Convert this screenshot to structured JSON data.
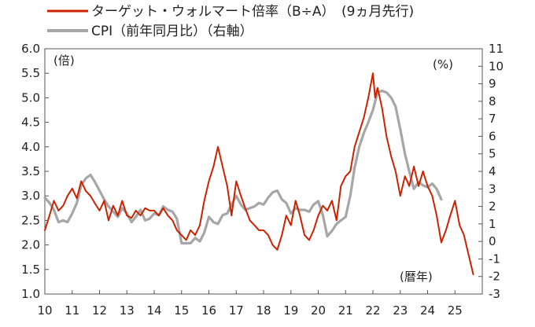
{
  "chart_data": {
    "type": "line",
    "title": "",
    "legend": {
      "placement": "top-left",
      "entries": [
        {
          "label": "ターゲット・ウォルマート倍率（B÷A）　(9ヵ月先行)",
          "color": "#cc2200"
        },
        {
          "label": "CPI（前年同月比）（右軸）",
          "color": "#a6a6a6"
        }
      ]
    },
    "left_axis": {
      "unit": "(倍)",
      "min": 1.0,
      "max": 6.0,
      "ticks": [
        "1.0",
        "1.5",
        "2.0",
        "2.5",
        "3.0",
        "3.5",
        "4.0",
        "4.5",
        "5.0",
        "5.5",
        "6.0"
      ]
    },
    "right_axis": {
      "unit": "(%)",
      "min": -3,
      "max": 11,
      "ticks": [
        "-3",
        "-2",
        "-1",
        "0",
        "1",
        "2",
        "3",
        "4",
        "5",
        "6",
        "7",
        "8",
        "9",
        "10",
        "11"
      ]
    },
    "x_axis": {
      "unit": "(暦年)",
      "min": 10,
      "max": 26,
      "ticks": [
        "10",
        "11",
        "12",
        "13",
        "14",
        "15",
        "16",
        "17",
        "18",
        "19",
        "20",
        "21",
        "22",
        "23",
        "24",
        "25"
      ]
    },
    "grid": false,
    "series": [
      {
        "name": "ターゲット・ウォルマート倍率（B÷A）　(9ヵ月先行)",
        "axis": "left",
        "color": "#cc2200",
        "x": [
          10.0,
          10.17,
          10.33,
          10.5,
          10.67,
          10.83,
          11.0,
          11.17,
          11.33,
          11.5,
          11.67,
          11.83,
          12.0,
          12.17,
          12.33,
          12.5,
          12.67,
          12.83,
          13.0,
          13.17,
          13.33,
          13.5,
          13.67,
          13.83,
          14.0,
          14.17,
          14.33,
          14.5,
          14.67,
          14.83,
          15.0,
          15.17,
          15.33,
          15.5,
          15.67,
          15.83,
          16.0,
          16.17,
          16.33,
          16.5,
          16.67,
          16.83,
          17.0,
          17.17,
          17.33,
          17.5,
          17.67,
          17.83,
          18.0,
          18.17,
          18.33,
          18.5,
          18.67,
          18.83,
          19.0,
          19.17,
          19.33,
          19.5,
          19.67,
          19.83,
          20.0,
          20.17,
          20.33,
          20.5,
          20.67,
          20.83,
          21.0,
          21.17,
          21.33,
          21.5,
          21.67,
          21.83,
          22.0,
          22.08,
          22.17,
          22.25,
          22.33,
          22.5,
          22.67,
          22.83,
          23.0,
          23.17,
          23.33,
          23.5,
          23.67,
          23.83,
          24.0,
          24.17,
          24.33,
          24.5,
          24.67,
          24.83,
          25.0,
          25.17,
          25.33,
          25.5,
          25.67
        ],
        "values": [
          2.3,
          2.6,
          2.9,
          2.7,
          2.8,
          3.0,
          3.15,
          2.95,
          3.3,
          3.1,
          3.0,
          2.85,
          2.7,
          2.9,
          2.5,
          2.8,
          2.6,
          2.9,
          2.6,
          2.55,
          2.7,
          2.6,
          2.75,
          2.7,
          2.7,
          2.6,
          2.75,
          2.6,
          2.5,
          2.3,
          2.2,
          2.1,
          2.3,
          2.2,
          2.4,
          2.9,
          3.3,
          3.6,
          4.0,
          3.6,
          3.2,
          2.6,
          3.3,
          3.0,
          2.75,
          2.5,
          2.4,
          2.3,
          2.3,
          2.2,
          2.0,
          1.9,
          2.2,
          2.6,
          2.4,
          2.9,
          2.6,
          2.2,
          2.1,
          2.3,
          2.6,
          2.8,
          2.7,
          2.9,
          2.5,
          3.2,
          3.4,
          3.5,
          4.0,
          4.3,
          4.6,
          5.0,
          5.5,
          5.0,
          5.2,
          5.0,
          4.8,
          4.2,
          3.8,
          3.5,
          3.0,
          3.4,
          3.2,
          3.6,
          3.2,
          3.5,
          3.2,
          3.0,
          2.6,
          2.05,
          2.3,
          2.6,
          2.9,
          2.4,
          2.2,
          1.8,
          1.4
        ]
      },
      {
        "name": "CPI（前年同月比）（右軸）",
        "axis": "right",
        "color": "#a6a6a6",
        "x": [
          10.0,
          10.17,
          10.33,
          10.5,
          10.67,
          10.83,
          11.0,
          11.17,
          11.33,
          11.5,
          11.67,
          11.83,
          12.0,
          12.17,
          12.33,
          12.5,
          12.67,
          12.83,
          13.0,
          13.17,
          13.33,
          13.5,
          13.67,
          13.83,
          14.0,
          14.17,
          14.33,
          14.5,
          14.67,
          14.83,
          15.0,
          15.17,
          15.33,
          15.5,
          15.67,
          15.83,
          16.0,
          16.17,
          16.33,
          16.5,
          16.67,
          16.83,
          17.0,
          17.17,
          17.33,
          17.5,
          17.67,
          17.83,
          18.0,
          18.17,
          18.33,
          18.5,
          18.67,
          18.83,
          19.0,
          19.17,
          19.33,
          19.5,
          19.67,
          19.83,
          20.0,
          20.17,
          20.33,
          20.5,
          20.67,
          20.83,
          21.0,
          21.17,
          21.33,
          21.5,
          21.67,
          21.83,
          22.0,
          22.17,
          22.33,
          22.5,
          22.67,
          22.83,
          23.0,
          23.17,
          23.33,
          23.5,
          23.67,
          23.83,
          24.0,
          24.17,
          24.33,
          24.5
        ],
        "values": [
          2.5,
          2.2,
          1.8,
          1.1,
          1.2,
          1.1,
          1.6,
          2.2,
          3.2,
          3.6,
          3.8,
          3.4,
          2.9,
          2.4,
          2.0,
          1.7,
          1.4,
          1.9,
          1.6,
          1.1,
          1.4,
          1.8,
          1.2,
          1.3,
          1.6,
          1.5,
          2.0,
          1.8,
          1.7,
          1.3,
          -0.1,
          -0.1,
          -0.1,
          0.2,
          0.0,
          0.5,
          1.4,
          1.1,
          1.0,
          1.5,
          1.6,
          2.1,
          2.6,
          2.1,
          1.8,
          1.9,
          2.0,
          2.2,
          2.1,
          2.5,
          2.8,
          2.9,
          2.4,
          2.2,
          1.6,
          1.9,
          1.8,
          1.8,
          1.7,
          2.1,
          2.3,
          1.5,
          0.3,
          0.6,
          1.0,
          1.2,
          1.4,
          2.6,
          4.2,
          5.4,
          6.2,
          6.8,
          7.5,
          8.5,
          8.6,
          8.5,
          8.2,
          7.7,
          6.4,
          5.0,
          4.0,
          3.0,
          3.4,
          3.2,
          3.1,
          3.3,
          3.0,
          2.4
        ]
      }
    ]
  }
}
